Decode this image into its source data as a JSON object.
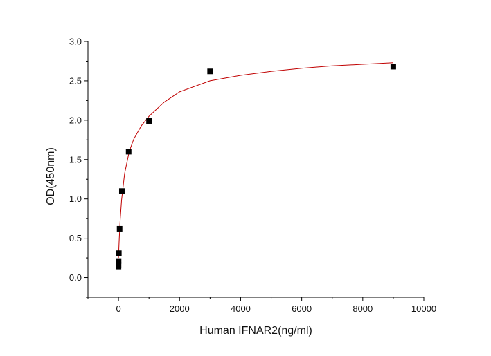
{
  "chart_data": {
    "type": "scatter",
    "title": "",
    "xlabel": "Human IFNAR2(ng/ml)",
    "ylabel": "OD(450nm)",
    "xlim": [
      -1000,
      10000
    ],
    "ylim": [
      -0.25,
      3.0
    ],
    "x_ticks": [
      0,
      2000,
      4000,
      6000,
      8000,
      10000
    ],
    "x_tick_labels": [
      "0",
      "2000",
      "4000",
      "6000",
      "8000",
      "10000"
    ],
    "y_ticks": [
      0.0,
      0.5,
      1.0,
      1.5,
      2.0,
      2.5,
      3.0
    ],
    "y_tick_labels": [
      "0.0",
      "0.5",
      "1.0",
      "1.5",
      "2.0",
      "2.5",
      "3.0"
    ],
    "grid": false,
    "series": [
      {
        "marker": "square",
        "color": "#000000",
        "points": [
          {
            "x": 0,
            "y": 0.14
          },
          {
            "x": 1,
            "y": 0.16
          },
          {
            "x": 4,
            "y": 0.21
          },
          {
            "x": 12,
            "y": 0.31
          },
          {
            "x": 37,
            "y": 0.62
          },
          {
            "x": 111,
            "y": 1.1
          },
          {
            "x": 333,
            "y": 1.6
          },
          {
            "x": 1000,
            "y": 1.99
          },
          {
            "x": 3000,
            "y": 2.62
          },
          {
            "x": 9000,
            "y": 2.68
          }
        ]
      }
    ],
    "fit_curve": {
      "color": "#c00000",
      "points": [
        {
          "x": 0,
          "y": 0.25
        },
        {
          "x": 20,
          "y": 0.45
        },
        {
          "x": 50,
          "y": 0.7
        },
        {
          "x": 100,
          "y": 0.98
        },
        {
          "x": 200,
          "y": 1.32
        },
        {
          "x": 350,
          "y": 1.6
        },
        {
          "x": 500,
          "y": 1.76
        },
        {
          "x": 750,
          "y": 1.93
        },
        {
          "x": 1000,
          "y": 2.05
        },
        {
          "x": 1500,
          "y": 2.23
        },
        {
          "x": 2000,
          "y": 2.36
        },
        {
          "x": 3000,
          "y": 2.5
        },
        {
          "x": 4000,
          "y": 2.57
        },
        {
          "x": 5000,
          "y": 2.62
        },
        {
          "x": 6000,
          "y": 2.66
        },
        {
          "x": 7000,
          "y": 2.69
        },
        {
          "x": 8000,
          "y": 2.71
        },
        {
          "x": 9000,
          "y": 2.73
        }
      ]
    }
  }
}
